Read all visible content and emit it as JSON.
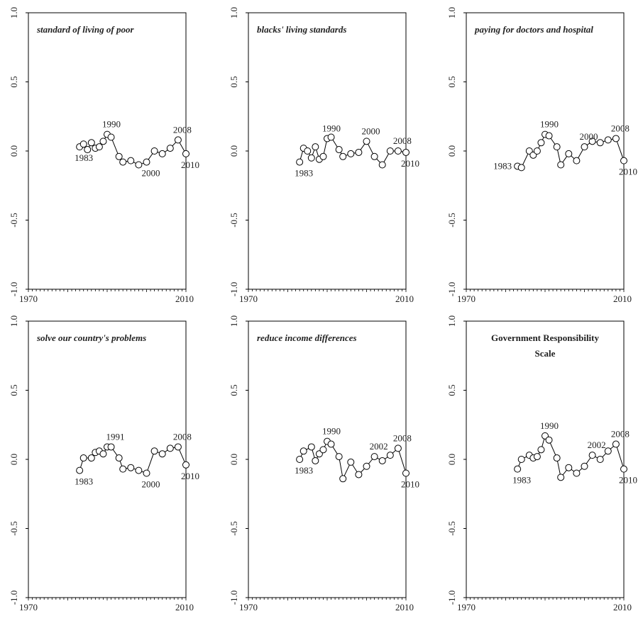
{
  "chart_data": [
    {
      "type": "line",
      "title": "standard of living of poor",
      "title_style": "italic",
      "xlim": [
        1970,
        2010
      ],
      "ylim": [
        -1.0,
        1.0
      ],
      "x_tick_labels": [
        "1970",
        "2010"
      ],
      "y_tick_labels": [
        "1.0",
        "0.5",
        "0.0",
        "-0.5",
        "-1.0"
      ],
      "grid": false,
      "series": [
        {
          "x": [
            1983,
            1984,
            1985,
            1986,
            1987,
            1988,
            1989,
            1990,
            1991,
            1993,
            1994,
            1996,
            1998,
            2000,
            2002,
            2004,
            2006,
            2008,
            2010
          ],
          "y": [
            0.03,
            0.05,
            0.01,
            0.06,
            0.02,
            0.03,
            0.07,
            0.12,
            0.1,
            -0.04,
            -0.08,
            -0.07,
            -0.1,
            -0.08,
            0.0,
            -0.02,
            0.02,
            0.08,
            -0.02
          ]
        }
      ],
      "annotations": [
        {
          "text": "1983",
          "x": 1983,
          "y": 0.03,
          "pos": "below"
        },
        {
          "text": "1990",
          "x": 1990,
          "y": 0.12,
          "pos": "above"
        },
        {
          "text": "2000",
          "x": 2000,
          "y": -0.08,
          "pos": "below"
        },
        {
          "text": "2008",
          "x": 2008,
          "y": 0.08,
          "pos": "above"
        },
        {
          "text": "2010",
          "x": 2010,
          "y": -0.02,
          "pos": "below"
        }
      ]
    },
    {
      "type": "line",
      "title": "blacks' living standards",
      "title_style": "italic",
      "xlim": [
        1970,
        2010
      ],
      "ylim": [
        -1.0,
        1.0
      ],
      "x_tick_labels": [
        "1970",
        "2010"
      ],
      "y_tick_labels": [
        "1.0",
        "0.5",
        "0.0",
        "-0.5",
        "-1.0"
      ],
      "grid": false,
      "series": [
        {
          "x": [
            1983,
            1984,
            1985,
            1986,
            1987,
            1988,
            1989,
            1990,
            1991,
            1993,
            1994,
            1996,
            1998,
            2000,
            2002,
            2004,
            2006,
            2008,
            2010
          ],
          "y": [
            -0.08,
            0.02,
            0.0,
            -0.05,
            0.03,
            -0.06,
            -0.04,
            0.09,
            0.1,
            0.01,
            -0.04,
            -0.02,
            -0.01,
            0.07,
            -0.04,
            -0.1,
            0.0,
            0.0,
            -0.01
          ]
        }
      ],
      "annotations": [
        {
          "text": "1983",
          "x": 1983,
          "y": -0.08,
          "pos": "below"
        },
        {
          "text": "1990",
          "x": 1990,
          "y": 0.09,
          "pos": "above"
        },
        {
          "text": "2000",
          "x": 2000,
          "y": 0.07,
          "pos": "above"
        },
        {
          "text": "2008",
          "x": 2008,
          "y": 0.0,
          "pos": "above"
        },
        {
          "text": "2010",
          "x": 2010,
          "y": -0.01,
          "pos": "below"
        }
      ]
    },
    {
      "type": "line",
      "title": "paying for doctors and hospital",
      "title_style": "italic",
      "xlim": [
        1970,
        2010
      ],
      "ylim": [
        -1.0,
        1.0
      ],
      "x_tick_labels": [
        "1970",
        "2010"
      ],
      "y_tick_labels": [
        "1.0",
        "0.5",
        "0.0",
        "-0.5",
        "-1.0"
      ],
      "grid": false,
      "series": [
        {
          "x": [
            1983,
            1984,
            1986,
            1987,
            1988,
            1989,
            1990,
            1991,
            1993,
            1994,
            1996,
            1998,
            2000,
            2002,
            2004,
            2006,
            2008,
            2010
          ],
          "y": [
            -0.11,
            -0.12,
            0.0,
            -0.03,
            0.0,
            0.06,
            0.12,
            0.11,
            0.03,
            -0.1,
            -0.02,
            -0.07,
            0.03,
            0.07,
            0.06,
            0.08,
            0.09,
            -0.07
          ]
        }
      ],
      "annotations": [
        {
          "text": "1983",
          "x": 1983,
          "y": -0.11,
          "pos": "left"
        },
        {
          "text": "1990",
          "x": 1990,
          "y": 0.12,
          "pos": "above"
        },
        {
          "text": "2000",
          "x": 2000,
          "y": 0.03,
          "pos": "above"
        },
        {
          "text": "2008",
          "x": 2008,
          "y": 0.09,
          "pos": "above"
        },
        {
          "text": "2010",
          "x": 2010,
          "y": -0.07,
          "pos": "below"
        }
      ]
    },
    {
      "type": "line",
      "title": "solve our country's problems",
      "title_style": "italic",
      "xlim": [
        1970,
        2010
      ],
      "ylim": [
        -1.0,
        1.0
      ],
      "x_tick_labels": [
        "1970",
        "2010"
      ],
      "y_tick_labels": [
        "1.0",
        "0.5",
        "0.0",
        "-0.5",
        "-1.0"
      ],
      "grid": false,
      "series": [
        {
          "x": [
            1983,
            1984,
            1986,
            1987,
            1988,
            1989,
            1990,
            1991,
            1993,
            1994,
            1996,
            1998,
            2000,
            2002,
            2004,
            2006,
            2008,
            2010
          ],
          "y": [
            -0.08,
            0.01,
            0.01,
            0.05,
            0.06,
            0.04,
            0.09,
            0.09,
            0.01,
            -0.07,
            -0.06,
            -0.08,
            -0.1,
            0.06,
            0.04,
            0.08,
            0.09,
            -0.04
          ]
        }
      ],
      "annotations": [
        {
          "text": "1983",
          "x": 1983,
          "y": -0.08,
          "pos": "below"
        },
        {
          "text": "1991",
          "x": 1991,
          "y": 0.09,
          "pos": "above"
        },
        {
          "text": "2000",
          "x": 2000,
          "y": -0.1,
          "pos": "below"
        },
        {
          "text": "2008",
          "x": 2008,
          "y": 0.09,
          "pos": "above"
        },
        {
          "text": "2010",
          "x": 2010,
          "y": -0.04,
          "pos": "below"
        }
      ]
    },
    {
      "type": "line",
      "title": "reduce income differences",
      "title_style": "italic",
      "xlim": [
        1970,
        2010
      ],
      "ylim": [
        -1.0,
        1.0
      ],
      "x_tick_labels": [
        "1970",
        "2010"
      ],
      "y_tick_labels": [
        "1.0",
        "0.5",
        "0.0",
        "-0.5",
        "-1.0"
      ],
      "grid": false,
      "series": [
        {
          "x": [
            1983,
            1984,
            1986,
            1987,
            1988,
            1989,
            1990,
            1991,
            1993,
            1994,
            1996,
            1998,
            2000,
            2002,
            2004,
            2006,
            2008,
            2010
          ],
          "y": [
            0.0,
            0.06,
            0.09,
            -0.01,
            0.04,
            0.07,
            0.13,
            0.11,
            0.02,
            -0.14,
            -0.02,
            -0.11,
            -0.05,
            0.02,
            -0.01,
            0.03,
            0.08,
            -0.1
          ]
        }
      ],
      "annotations": [
        {
          "text": "1983",
          "x": 1983,
          "y": 0.0,
          "pos": "below"
        },
        {
          "text": "1990",
          "x": 1990,
          "y": 0.13,
          "pos": "above"
        },
        {
          "text": "2002",
          "x": 2002,
          "y": 0.02,
          "pos": "above"
        },
        {
          "text": "2008",
          "x": 2008,
          "y": 0.08,
          "pos": "above"
        },
        {
          "text": "2010",
          "x": 2010,
          "y": -0.1,
          "pos": "below"
        }
      ]
    },
    {
      "type": "line",
      "title": "Government Responsibility Scale",
      "title_lines": [
        "Government Responsibility",
        "Scale"
      ],
      "title_style": "plain",
      "xlim": [
        1970,
        2010
      ],
      "ylim": [
        -1.0,
        1.0
      ],
      "x_tick_labels": [
        "1970",
        "2010"
      ],
      "y_tick_labels": [
        "1.0",
        "0.5",
        "0.0",
        "-0.5",
        "-1.0"
      ],
      "grid": false,
      "series": [
        {
          "x": [
            1983,
            1984,
            1986,
            1987,
            1988,
            1989,
            1990,
            1991,
            1993,
            1994,
            1996,
            1998,
            2000,
            2002,
            2004,
            2006,
            2008,
            2010
          ],
          "y": [
            -0.07,
            0.0,
            0.03,
            0.01,
            0.02,
            0.07,
            0.17,
            0.14,
            0.01,
            -0.13,
            -0.06,
            -0.1,
            -0.05,
            0.03,
            0.0,
            0.06,
            0.11,
            -0.07
          ]
        }
      ],
      "annotations": [
        {
          "text": "1983",
          "x": 1983,
          "y": -0.07,
          "pos": "below"
        },
        {
          "text": "1990",
          "x": 1990,
          "y": 0.17,
          "pos": "above"
        },
        {
          "text": "2002",
          "x": 2002,
          "y": 0.03,
          "pos": "above"
        },
        {
          "text": "2008",
          "x": 2008,
          "y": 0.11,
          "pos": "above"
        },
        {
          "text": "2010",
          "x": 2010,
          "y": -0.07,
          "pos": "below"
        }
      ]
    }
  ]
}
